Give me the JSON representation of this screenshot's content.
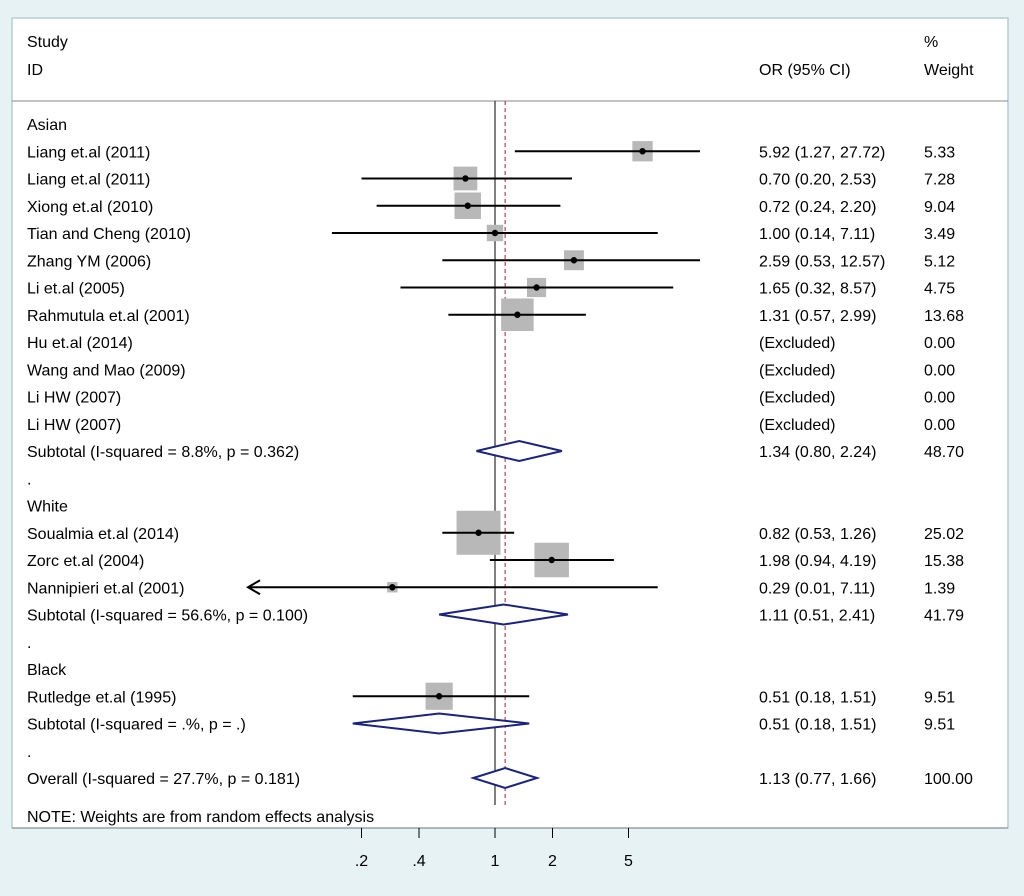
{
  "header": {
    "study_line1": "Study",
    "study_line2": "ID",
    "or_header": "OR (95% CI)",
    "weight_line1": "%",
    "weight_line2": "Weight"
  },
  "note": "NOTE: Weights are from random effects analysis",
  "chart_data": {
    "type": "forest",
    "x_scale": "log",
    "x_ticks": [
      {
        "value": 0.2,
        "label": ".2"
      },
      {
        "value": 0.4,
        "label": ".4"
      },
      {
        "value": 1,
        "label": "1"
      },
      {
        "value": 2,
        "label": "2"
      },
      {
        "value": 5,
        "label": "5"
      }
    ],
    "null_line": 1,
    "overall_line": 1.13,
    "rows": [
      {
        "kind": "group",
        "label": "Asian"
      },
      {
        "kind": "study",
        "label": "Liang et.al (2011)",
        "or": 5.92,
        "lo": 1.27,
        "hi": 27.72,
        "ci_text": "5.92 (1.27, 27.72)",
        "weight": 5.33,
        "weight_text": "5.33"
      },
      {
        "kind": "study",
        "label": "Liang et.al (2011)",
        "or": 0.7,
        "lo": 0.2,
        "hi": 2.53,
        "ci_text": "0.70 (0.20, 2.53)",
        "weight": 7.28,
        "weight_text": "7.28"
      },
      {
        "kind": "study",
        "label": "Xiong et.al (2010)",
        "or": 0.72,
        "lo": 0.24,
        "hi": 2.2,
        "ci_text": "0.72 (0.24, 2.20)",
        "weight": 9.04,
        "weight_text": "9.04"
      },
      {
        "kind": "study",
        "label": "Tian and Cheng (2010)",
        "or": 1.0,
        "lo": 0.14,
        "hi": 7.11,
        "ci_text": "1.00 (0.14, 7.11)",
        "weight": 3.49,
        "weight_text": "3.49"
      },
      {
        "kind": "study",
        "label": "Zhang YM  (2006)",
        "or": 2.59,
        "lo": 0.53,
        "hi": 12.57,
        "ci_text": "2.59 (0.53, 12.57)",
        "weight": 5.12,
        "weight_text": "5.12"
      },
      {
        "kind": "study",
        "label": "Li et.al (2005)",
        "or": 1.65,
        "lo": 0.32,
        "hi": 8.57,
        "ci_text": "1.65 (0.32, 8.57)",
        "weight": 4.75,
        "weight_text": "4.75"
      },
      {
        "kind": "study",
        "label": "Rahmutula et.al (2001)",
        "or": 1.31,
        "lo": 0.57,
        "hi": 2.99,
        "ci_text": "1.31 (0.57, 2.99)",
        "weight": 13.68,
        "weight_text": "13.68"
      },
      {
        "kind": "excluded",
        "label": "Hu et.al (2014)",
        "ci_text": "(Excluded)",
        "weight_text": "0.00"
      },
      {
        "kind": "excluded",
        "label": "Wang and Mao (2009)",
        "ci_text": "(Excluded)",
        "weight_text": "0.00"
      },
      {
        "kind": "excluded",
        "label": "Li HW  (2007)",
        "ci_text": "(Excluded)",
        "weight_text": "0.00"
      },
      {
        "kind": "excluded",
        "label": "Li HW  (2007)",
        "ci_text": "(Excluded)",
        "weight_text": "0.00"
      },
      {
        "kind": "subtotal",
        "label": "Subtotal  (I-squared = 8.8%, p = 0.362)",
        "or": 1.34,
        "lo": 0.8,
        "hi": 2.24,
        "ci_text": "1.34 (0.80, 2.24)",
        "weight_text": "48.70"
      },
      {
        "kind": "spacer",
        "label": "."
      },
      {
        "kind": "group",
        "label": "White"
      },
      {
        "kind": "study",
        "label": "Soualmia et.al (2014)",
        "or": 0.82,
        "lo": 0.53,
        "hi": 1.26,
        "ci_text": "0.82 (0.53, 1.26)",
        "weight": 25.02,
        "weight_text": "25.02"
      },
      {
        "kind": "study",
        "label": "Zorc et.al (2004)",
        "or": 1.98,
        "lo": 0.94,
        "hi": 4.19,
        "ci_text": "1.98 (0.94, 4.19)",
        "weight": 15.38,
        "weight_text": "15.38"
      },
      {
        "kind": "study",
        "label": "Nannipieri et.al (2001)",
        "or": 0.29,
        "lo": 0.01,
        "hi": 7.11,
        "ci_text": "0.29 (0.01, 7.11)",
        "weight": 1.39,
        "weight_text": "1.39",
        "arrow_left": true
      },
      {
        "kind": "subtotal",
        "label": "Subtotal  (I-squared = 56.6%, p = 0.100)",
        "or": 1.11,
        "lo": 0.51,
        "hi": 2.41,
        "ci_text": "1.11 (0.51, 2.41)",
        "weight_text": "41.79"
      },
      {
        "kind": "spacer",
        "label": "."
      },
      {
        "kind": "group",
        "label": "Black"
      },
      {
        "kind": "study",
        "label": "Rutledge et.al (1995)",
        "or": 0.51,
        "lo": 0.18,
        "hi": 1.51,
        "ci_text": "0.51 (0.18, 1.51)",
        "weight": 9.51,
        "weight_text": "9.51"
      },
      {
        "kind": "subtotal",
        "label": "Subtotal  (I-squared = .%, p = .)",
        "or": 0.51,
        "lo": 0.18,
        "hi": 1.51,
        "ci_text": "0.51 (0.18, 1.51)",
        "weight_text": "9.51"
      },
      {
        "kind": "spacer",
        "label": "."
      },
      {
        "kind": "overall",
        "label": "Overall  (I-squared = 27.7%, p = 0.181)",
        "or": 1.13,
        "lo": 0.77,
        "hi": 1.66,
        "ci_text": "1.13 (0.77, 1.66)",
        "weight_text": "100.00"
      }
    ]
  }
}
